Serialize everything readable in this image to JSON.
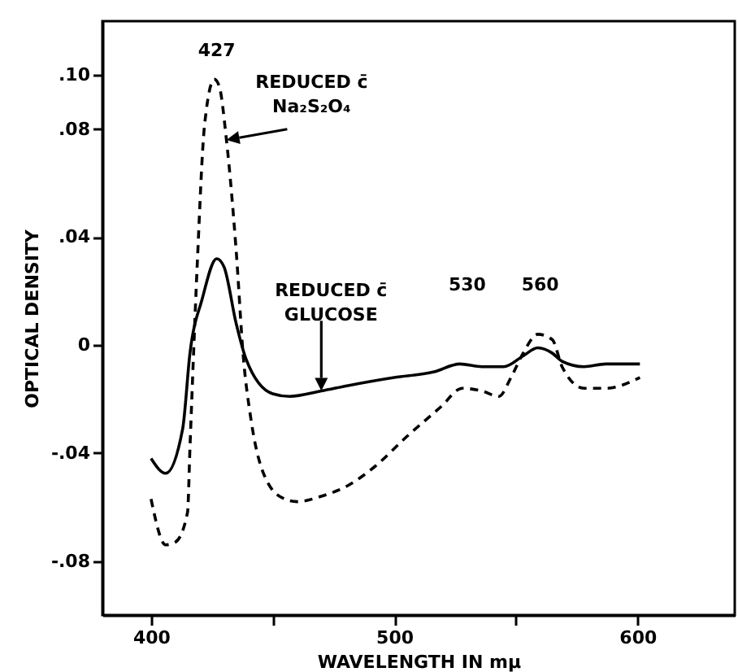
{
  "chart_data": {
    "type": "line",
    "xlabel": "WAVELENGTH IN mμ",
    "ylabel": "OPTICAL DENSITY",
    "xlim": [
      380,
      640
    ],
    "xticks": [
      400,
      {
        "value": 450,
        "label": null
      },
      500,
      {
        "value": 550,
        "label": null
      },
      600
    ],
    "ylim": [
      -0.1,
      0.12
    ],
    "yticks": [
      {
        "value": 0.1,
        "label": ".10"
      },
      {
        "value": 0.08,
        "label": ".08"
      },
      {
        "value": 0.04,
        "label": ".04"
      },
      0,
      {
        "value": -0.04,
        "label": "-.04"
      },
      {
        "value": -0.08,
        "label": "-.08"
      }
    ],
    "grid": false,
    "series": [
      {
        "color": "#000000",
        "line_style": "dashed",
        "x": [
          400,
          406,
          410,
          415,
          416,
          419,
          422,
          426,
          428,
          431,
          435,
          438,
          441,
          448,
          455,
          460,
          470,
          481,
          492,
          505,
          519,
          528,
          536,
          543,
          548,
          553,
          559,
          565,
          569,
          578,
          587,
          601
        ],
        "values": [
          -0.057,
          -0.074,
          -0.073,
          -0.062,
          -0.038,
          0.03,
          0.0815,
          0.0985,
          0.096,
          0.076,
          0.035,
          -0.005,
          -0.027,
          -0.051,
          -0.057,
          -0.058,
          -0.056,
          -0.052,
          -0.045,
          -0.034,
          -0.023,
          -0.016,
          -0.017,
          -0.019,
          -0.012,
          -0.003,
          0.004,
          0.002,
          -0.008,
          -0.016,
          -0.016,
          -0.012
        ]
      },
      {
        "color": "#000000",
        "line_style": "solid",
        "x": [
          400,
          406,
          413,
          416,
          421,
          427,
          430,
          435,
          439,
          450,
          457,
          470,
          481,
          500,
          516,
          527,
          536,
          545,
          553,
          559,
          565,
          569,
          578,
          587,
          601
        ],
        "values": [
          -0.042,
          -0.0475,
          -0.031,
          -0.003,
          0.017,
          0.032,
          0.029,
          0.008,
          -0.005,
          -0.018,
          -0.019,
          -0.017,
          -0.015,
          -0.012,
          -0.01,
          -0.007,
          -0.008,
          -0.008,
          -0.004,
          -0.001,
          -0.003,
          -0.006,
          -0.008,
          -0.007,
          -0.007
        ]
      }
    ],
    "annotations": [
      {
        "text": "REDUCED c̄\nNa₂S₂O₄",
        "x": 431,
        "y": 0.076
      },
      {
        "text": "REDUCED c̄\nGLUCOSE",
        "x": 470,
        "y": -0.017
      },
      "427",
      "530",
      "560"
    ]
  }
}
